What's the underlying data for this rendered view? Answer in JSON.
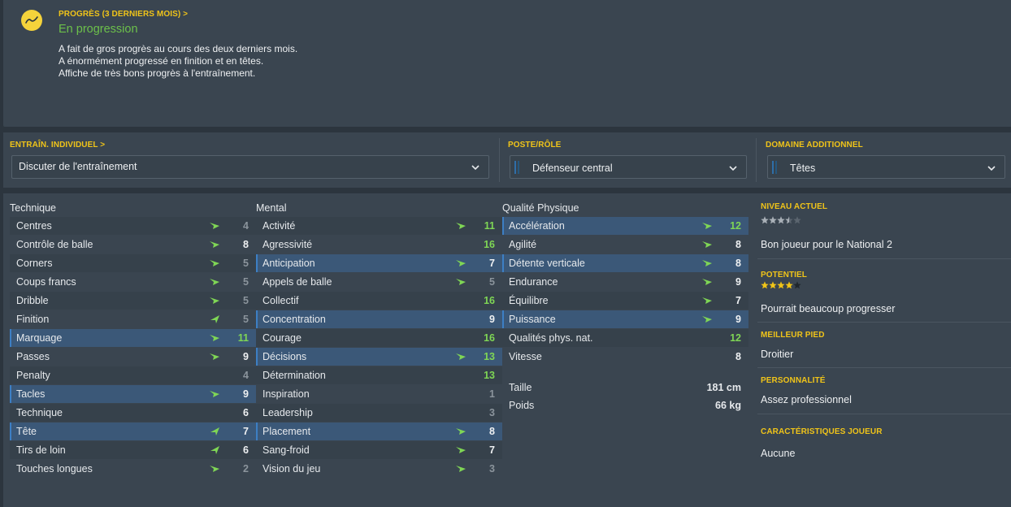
{
  "progress": {
    "label": "PROGRÈS (3 DERNIERS MOIS) >",
    "status": "En progression",
    "lines": [
      "A fait de gros progrès au cours des deux derniers mois.",
      "A énormément progressé en finition et en têtes.",
      "Affiche de très bons progrès à l'entraînement."
    ]
  },
  "training": {
    "individual_label": "ENTRAÎN. INDIVIDUEL >",
    "individual_value": "Discuter de l'entraînement",
    "role_label": "POSTE/RÔLE",
    "role_value": "Défenseur central",
    "additional_label": "DOMAINE ADDITIONNEL",
    "additional_value": "Têtes"
  },
  "attributes": {
    "technique": {
      "title": "Technique",
      "rows": [
        {
          "name": "Centres",
          "value": "4",
          "arrow": "up",
          "hl": false,
          "color": "grey"
        },
        {
          "name": "Contrôle de balle",
          "value": "8",
          "arrow": "up",
          "hl": false,
          "color": "white"
        },
        {
          "name": "Corners",
          "value": "5",
          "arrow": "up",
          "hl": false,
          "color": "grey"
        },
        {
          "name": "Coups francs",
          "value": "5",
          "arrow": "up",
          "hl": false,
          "color": "grey"
        },
        {
          "name": "Dribble",
          "value": "5",
          "arrow": "up",
          "hl": false,
          "color": "grey"
        },
        {
          "name": "Finition",
          "value": "5",
          "arrow": "strong",
          "hl": false,
          "color": "grey"
        },
        {
          "name": "Marquage",
          "value": "11",
          "arrow": "up",
          "hl": true,
          "color": "green"
        },
        {
          "name": "Passes",
          "value": "9",
          "arrow": "up",
          "hl": false,
          "color": "white"
        },
        {
          "name": "Penalty",
          "value": "4",
          "arrow": "",
          "hl": false,
          "color": "grey"
        },
        {
          "name": "Tacles",
          "value": "9",
          "arrow": "up",
          "hl": true,
          "color": "white"
        },
        {
          "name": "Technique",
          "value": "6",
          "arrow": "",
          "hl": false,
          "color": "white"
        },
        {
          "name": "Tête",
          "value": "7",
          "arrow": "strong",
          "hl": true,
          "color": "white"
        },
        {
          "name": "Tirs de loin",
          "value": "6",
          "arrow": "strong",
          "hl": false,
          "color": "white"
        },
        {
          "name": "Touches longues",
          "value": "2",
          "arrow": "up",
          "hl": false,
          "color": "grey"
        }
      ]
    },
    "mental": {
      "title": "Mental",
      "rows": [
        {
          "name": "Activité",
          "value": "11",
          "arrow": "up",
          "hl": false,
          "color": "green"
        },
        {
          "name": "Agressivité",
          "value": "16",
          "arrow": "",
          "hl": false,
          "color": "green"
        },
        {
          "name": "Anticipation",
          "value": "7",
          "arrow": "up",
          "hl": true,
          "color": "white"
        },
        {
          "name": "Appels de balle",
          "value": "5",
          "arrow": "up",
          "hl": false,
          "color": "grey"
        },
        {
          "name": "Collectif",
          "value": "16",
          "arrow": "",
          "hl": false,
          "color": "green"
        },
        {
          "name": "Concentration",
          "value": "9",
          "arrow": "",
          "hl": true,
          "color": "white"
        },
        {
          "name": "Courage",
          "value": "16",
          "arrow": "",
          "hl": false,
          "color": "green"
        },
        {
          "name": "Décisions",
          "value": "13",
          "arrow": "up",
          "hl": true,
          "color": "green"
        },
        {
          "name": "Détermination",
          "value": "13",
          "arrow": "",
          "hl": false,
          "color": "green"
        },
        {
          "name": "Inspiration",
          "value": "1",
          "arrow": "",
          "hl": false,
          "color": "grey"
        },
        {
          "name": "Leadership",
          "value": "3",
          "arrow": "",
          "hl": false,
          "color": "grey"
        },
        {
          "name": "Placement",
          "value": "8",
          "arrow": "up",
          "hl": true,
          "color": "white"
        },
        {
          "name": "Sang-froid",
          "value": "7",
          "arrow": "up",
          "hl": false,
          "color": "white"
        },
        {
          "name": "Vision du jeu",
          "value": "3",
          "arrow": "up",
          "hl": false,
          "color": "grey"
        }
      ]
    },
    "physical": {
      "title": "Qualité Physique",
      "rows": [
        {
          "name": "Accélération",
          "value": "12",
          "arrow": "up",
          "hl": true,
          "color": "green"
        },
        {
          "name": "Agilité",
          "value": "8",
          "arrow": "up",
          "hl": false,
          "color": "white"
        },
        {
          "name": "Détente verticale",
          "value": "8",
          "arrow": "up",
          "hl": true,
          "color": "white"
        },
        {
          "name": "Endurance",
          "value": "9",
          "arrow": "up",
          "hl": false,
          "color": "white"
        },
        {
          "name": "Équilibre",
          "value": "7",
          "arrow": "up",
          "hl": false,
          "color": "white"
        },
        {
          "name": "Puissance",
          "value": "9",
          "arrow": "up",
          "hl": true,
          "color": "white"
        },
        {
          "name": "Qualités phys. nat.",
          "value": "12",
          "arrow": "",
          "hl": false,
          "color": "green"
        },
        {
          "name": "Vitesse",
          "value": "8",
          "arrow": "",
          "hl": false,
          "color": "white"
        }
      ],
      "height_label": "Taille",
      "height_value": "181 cm",
      "weight_label": "Poids",
      "weight_value": "66 kg"
    }
  },
  "info": {
    "current_label": "NIVEAU ACTUEL",
    "current_stars": 3.5,
    "current_text": "Bon joueur pour le National 2",
    "potential_label": "POTENTIEL",
    "potential_stars": 4,
    "potential_text": "Pourrait beaucoup progresser",
    "foot_label": "MEILLEUR PIED",
    "foot_text": "Droitier",
    "personality_label": "PERSONNALITÉ",
    "personality_text": "Assez professionnel",
    "traits_label": "CARACTÉRISTIQUES JOUEUR",
    "traits_text": "Aucune"
  },
  "colors": {
    "accent_yellow": "#f0c419",
    "progress_green": "#6cc04a",
    "value_green": "#7fd655",
    "highlight_blue": "#3b5878"
  }
}
